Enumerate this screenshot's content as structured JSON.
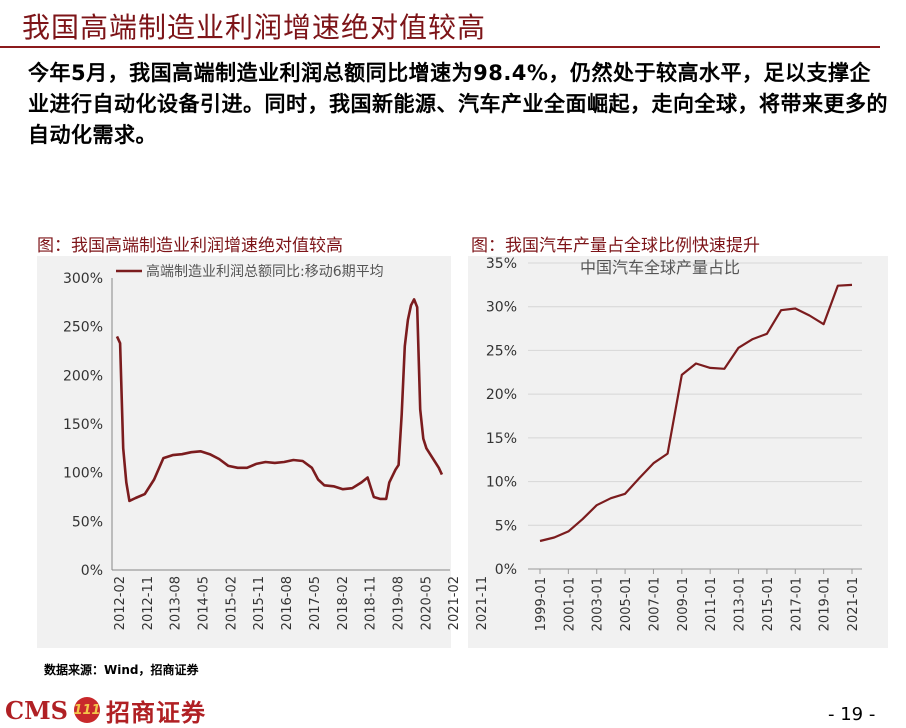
{
  "title": "我国高端制造业利润增速绝对值较高",
  "body_text": "今年5月，我国高端制造业利润总额同比增速为98.4%，仍然处于较高水平，足以支撑企业进行自动化设备引进。同时，我国新能源、汽车产业全面崛起，走向全球，将带来更多的自动化需求。",
  "figure_left_caption": "图：我国高端制造业利润增速绝对值较高",
  "figure_right_caption": "图：我国汽车产量占全球比例快速提升",
  "source": "数据来源：Wind，招商证券",
  "logo": {
    "cms": "CMS",
    "badge": "111",
    "name": "招商证券"
  },
  "page_number": "- 19 -",
  "colors": {
    "accent": "#7d1418",
    "line": "#7b1c1e",
    "panel": "#f1f1f1"
  },
  "chart_data": [
    {
      "type": "line",
      "series": [
        {
          "name": "高端制造业利润总额同比:移动6期平均"
        }
      ],
      "y_ticks": [
        "0%",
        "50%",
        "100%",
        "150%",
        "200%",
        "250%",
        "300%"
      ],
      "x_ticks": [
        "2012-02",
        "2012-11",
        "2013-08",
        "2014-05",
        "2015-02",
        "2015-11",
        "2016-08",
        "2017-05",
        "2018-02",
        "2018-11",
        "2019-08",
        "2020-05",
        "2021-02",
        "2021-11"
      ],
      "ylim": [
        0,
        300
      ],
      "points": [
        [
          0,
          240
        ],
        [
          1,
          233
        ],
        [
          2,
          125
        ],
        [
          3,
          90
        ],
        [
          4,
          71
        ],
        [
          6,
          74
        ],
        [
          9,
          78
        ],
        [
          12,
          93
        ],
        [
          15,
          115
        ],
        [
          18,
          118
        ],
        [
          21,
          119
        ],
        [
          24,
          121
        ],
        [
          27,
          122
        ],
        [
          30,
          119
        ],
        [
          33,
          114
        ],
        [
          36,
          107
        ],
        [
          39,
          105
        ],
        [
          42,
          105
        ],
        [
          45,
          109
        ],
        [
          48,
          111
        ],
        [
          51,
          110
        ],
        [
          54,
          111
        ],
        [
          57,
          113
        ],
        [
          60,
          112
        ],
        [
          63,
          105
        ],
        [
          65,
          93
        ],
        [
          67,
          87
        ],
        [
          70,
          86
        ],
        [
          73,
          83
        ],
        [
          76,
          84
        ],
        [
          79,
          90
        ],
        [
          81,
          95
        ],
        [
          83,
          75
        ],
        [
          85,
          73
        ],
        [
          87,
          73
        ],
        [
          88,
          90
        ],
        [
          90,
          103
        ],
        [
          91,
          108
        ],
        [
          92,
          160
        ],
        [
          93,
          230
        ],
        [
          94,
          257
        ],
        [
          95,
          272
        ],
        [
          96,
          278
        ],
        [
          97,
          270
        ],
        [
          98,
          165
        ],
        [
          99,
          135
        ],
        [
          100,
          125
        ],
        [
          102,
          115
        ],
        [
          104,
          105
        ],
        [
          105,
          98
        ]
      ]
    },
    {
      "type": "line",
      "series": [
        {
          "name": "中国汽车全球产量占比"
        }
      ],
      "y_ticks": [
        "0%",
        "5%",
        "10%",
        "15%",
        "20%",
        "25%",
        "30%",
        "35%"
      ],
      "x_ticks": [
        "1999-01",
        "2001-01",
        "2003-01",
        "2005-01",
        "2007-01",
        "2009-01",
        "2011-01",
        "2013-01",
        "2015-01",
        "2017-01",
        "2019-01",
        "2021-01"
      ],
      "ylim": [
        0,
        35
      ],
      "x": [
        "1999",
        "2000",
        "2001",
        "2002",
        "2003",
        "2004",
        "2005",
        "2006",
        "2007",
        "2008",
        "2009",
        "2010",
        "2011",
        "2012",
        "2013",
        "2014",
        "2015",
        "2016",
        "2017",
        "2018",
        "2019",
        "2020",
        "2021"
      ],
      "values": [
        3.2,
        3.6,
        4.3,
        5.7,
        7.3,
        8.1,
        8.6,
        10.4,
        12.1,
        13.2,
        22.2,
        23.5,
        23.0,
        22.9,
        25.3,
        26.3,
        26.9,
        29.6,
        29.8,
        29.0,
        28.0,
        32.4,
        32.5
      ]
    }
  ]
}
